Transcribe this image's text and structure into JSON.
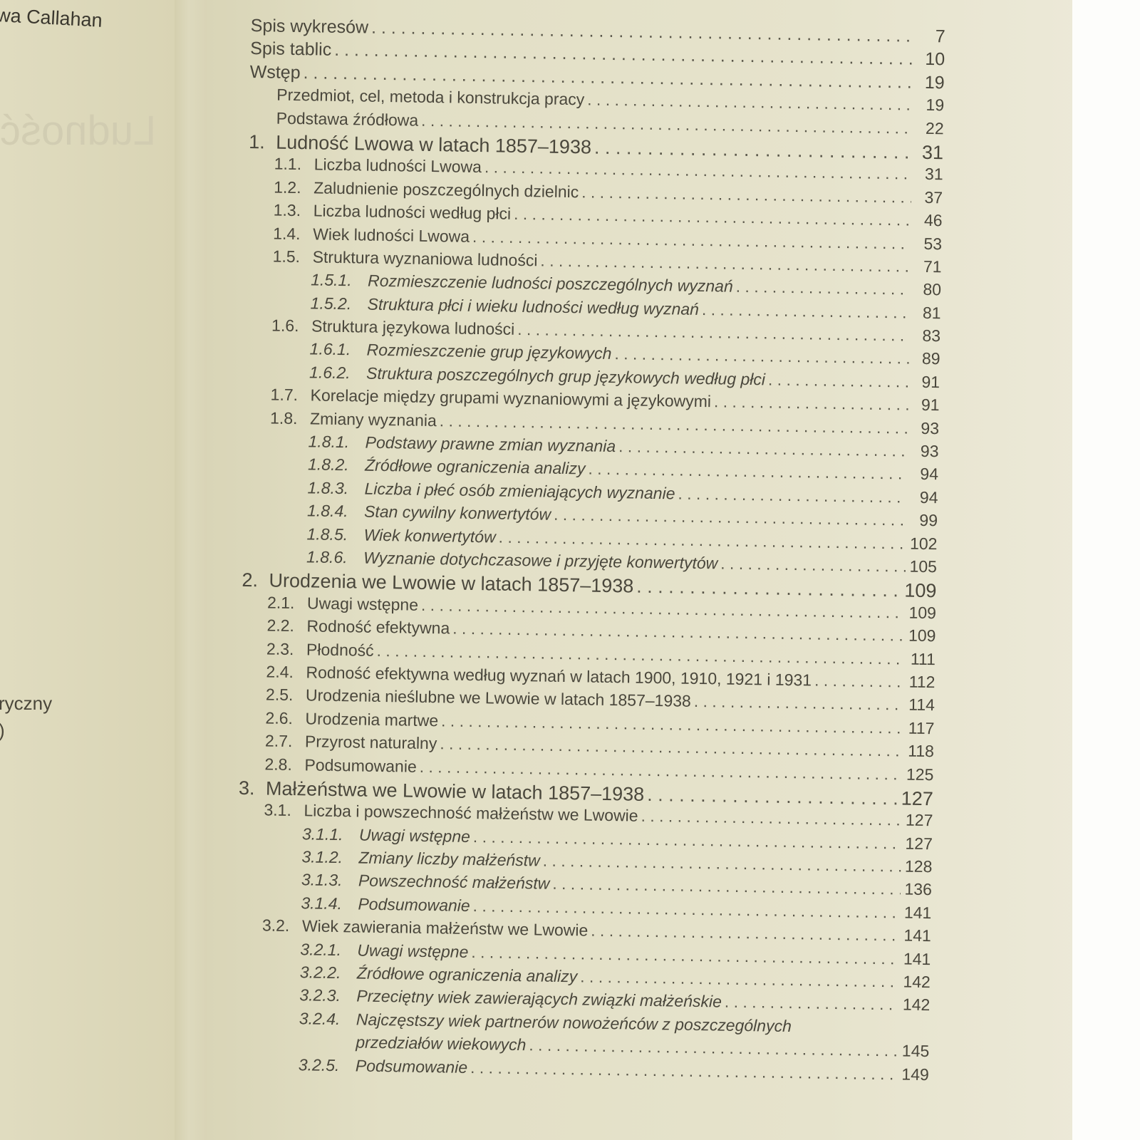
{
  "left_page": {
    "author": "wa Callahan",
    "bleed_through": "Ludność",
    "fragment_1": "ryczny",
    "fragment_2": ")"
  },
  "toc": [
    {
      "level": 0,
      "num": "",
      "title": "Spis wykresów",
      "page": "7"
    },
    {
      "level": 0,
      "num": "",
      "title": "Spis tablic",
      "page": "10"
    },
    {
      "level": 0,
      "num": "",
      "title": "Wstęp",
      "page": "19"
    },
    {
      "level": 1,
      "num": "",
      "title": "Przedmiot, cel, metoda i konstrukcja pracy",
      "page": "19"
    },
    {
      "level": 1,
      "num": "",
      "title": "Podstawa źródłowa",
      "page": "22"
    },
    {
      "level": "chap",
      "num": "1.",
      "title": "Ludność Lwowa w latach 1857–1938",
      "page": "31"
    },
    {
      "level": 2,
      "num": "1.1.",
      "title": "Liczba ludności Lwowa",
      "page": "31"
    },
    {
      "level": 2,
      "num": "1.2.",
      "title": "Zaludnienie poszczególnych dzielnic",
      "page": "37"
    },
    {
      "level": 2,
      "num": "1.3.",
      "title": "Liczba ludności według płci",
      "page": "46"
    },
    {
      "level": 2,
      "num": "1.4.",
      "title": "Wiek ludności Lwowa",
      "page": "53"
    },
    {
      "level": 2,
      "num": "1.5.",
      "title": "Struktura wyznaniowa ludności",
      "page": "71"
    },
    {
      "level": 3,
      "num": "1.5.1.",
      "title": "Rozmieszczenie ludności poszczególnych wyznań",
      "page": "80"
    },
    {
      "level": 3,
      "num": "1.5.2.",
      "title": "Struktura płci i wieku ludności według wyznań",
      "page": "81"
    },
    {
      "level": 2,
      "num": "1.6.",
      "title": "Struktura językowa ludności",
      "page": "83"
    },
    {
      "level": 3,
      "num": "1.6.1.",
      "title": "Rozmieszczenie grup językowych",
      "page": "89"
    },
    {
      "level": 3,
      "num": "1.6.2.",
      "title": "Struktura poszczególnych grup językowych według płci",
      "page": "91"
    },
    {
      "level": 2,
      "num": "1.7.",
      "title": "Korelacje między grupami wyznaniowymi a językowymi",
      "page": "91"
    },
    {
      "level": 2,
      "num": "1.8.",
      "title": "Zmiany wyznania",
      "page": "93"
    },
    {
      "level": 3,
      "num": "1.8.1.",
      "title": "Podstawy prawne zmian wyznania",
      "page": "93"
    },
    {
      "level": 3,
      "num": "1.8.2.",
      "title": "Źródłowe ograniczenia analizy",
      "page": "94"
    },
    {
      "level": 3,
      "num": "1.8.3.",
      "title": "Liczba i płeć osób zmieniających wyznanie",
      "page": "94"
    },
    {
      "level": 3,
      "num": "1.8.4.",
      "title": "Stan cywilny konwertytów",
      "page": "99"
    },
    {
      "level": 3,
      "num": "1.8.5.",
      "title": "Wiek konwertytów",
      "page": "102"
    },
    {
      "level": 3,
      "num": "1.8.6.",
      "title": "Wyznanie dotychczasowe i przyjęte konwertytów",
      "page": "105"
    },
    {
      "level": "chap",
      "num": "2.",
      "title": "Urodzenia we Lwowie w latach 1857–1938",
      "page": "109"
    },
    {
      "level": 2,
      "num": "2.1.",
      "title": "Uwagi wstępne",
      "page": "109"
    },
    {
      "level": 2,
      "num": "2.2.",
      "title": "Rodność efektywna",
      "page": "109"
    },
    {
      "level": 2,
      "num": "2.3.",
      "title": "Płodność",
      "page": "111"
    },
    {
      "level": 2,
      "num": "2.4.",
      "title": "Rodność efektywna według wyznań w latach 1900, 1910, 1921 i 1931",
      "page": "112"
    },
    {
      "level": 2,
      "num": "2.5.",
      "title": "Urodzenia nieślubne we Lwowie w latach 1857–1938",
      "page": "114"
    },
    {
      "level": 2,
      "num": "2.6.",
      "title": "Urodzenia martwe",
      "page": "117"
    },
    {
      "level": 2,
      "num": "2.7.",
      "title": "Przyrost naturalny",
      "page": "118"
    },
    {
      "level": 2,
      "num": "2.8.",
      "title": "Podsumowanie",
      "page": "125"
    },
    {
      "level": "chap",
      "num": "3.",
      "title": "Małżeństwa we Lwowie w latach 1857–1938",
      "page": "127"
    },
    {
      "level": 2,
      "num": "3.1.",
      "title": "Liczba i powszechność małżeństw we Lwowie",
      "page": "127"
    },
    {
      "level": 3,
      "num": "3.1.1.",
      "title": "Uwagi wstępne",
      "page": "127"
    },
    {
      "level": 3,
      "num": "3.1.2.",
      "title": "Zmiany liczby małżeństw",
      "page": "128"
    },
    {
      "level": 3,
      "num": "3.1.3.",
      "title": "Powszechność małżeństw",
      "page": "136"
    },
    {
      "level": 3,
      "num": "3.1.4.",
      "title": "Podsumowanie",
      "page": "141"
    },
    {
      "level": 2,
      "num": "3.2.",
      "title": "Wiek zawierania małżeństw we Lwowie",
      "page": "141"
    },
    {
      "level": 3,
      "num": "3.2.1.",
      "title": "Uwagi wstępne",
      "page": "141"
    },
    {
      "level": 3,
      "num": "3.2.2.",
      "title": "Źródłowe ograniczenia analizy",
      "page": "142"
    },
    {
      "level": 3,
      "num": "3.2.3.",
      "title": "Przeciętny wiek zawierających związki małżeńskie",
      "page": "142"
    },
    {
      "level": 3,
      "num": "3.2.4.",
      "title": "Najczęstszy wiek partnerów nowożeńców z poszczególnych",
      "page": "",
      "nodots": true
    },
    {
      "level": 3,
      "num": "",
      "title": "przedziałów wiekowych",
      "page": "145"
    },
    {
      "level": 3,
      "num": "3.2.5.",
      "title": "Podsumowanie",
      "page": "149"
    }
  ]
}
